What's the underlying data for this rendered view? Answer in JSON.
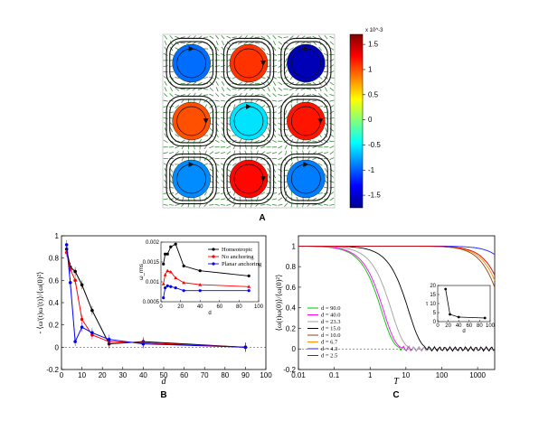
{
  "panel_letters": {
    "a": "A",
    "b": "B",
    "c": "C"
  },
  "panel_a": {
    "colorbar": {
      "multiplier": "x 10^-3",
      "ticks": [
        "1.5",
        "1",
        "0.5",
        "0",
        "-0.5",
        "-1",
        "-1.5"
      ],
      "tick_values": [
        1.5,
        1,
        0.5,
        0,
        -0.5,
        -1,
        -1.5
      ],
      "vmin": -1.75,
      "vmax": 1.7
    },
    "vortices": [
      {
        "row": 0,
        "col": 0,
        "value": -0.95
      },
      {
        "row": 0,
        "col": 1,
        "value": 1.1
      },
      {
        "row": 0,
        "col": 2,
        "value": -1.6
      },
      {
        "row": 1,
        "col": 0,
        "value": 1.0
      },
      {
        "row": 1,
        "col": 1,
        "value": -0.55
      },
      {
        "row": 1,
        "col": 2,
        "value": 1.2
      },
      {
        "row": 2,
        "col": 0,
        "value": -0.85
      },
      {
        "row": 2,
        "col": 1,
        "value": 1.25
      },
      {
        "row": 2,
        "col": 2,
        "value": -0.9
      }
    ],
    "colors": {
      "field": "#3a8a3a",
      "streamline": "#111111"
    }
  },
  "chart_data": [
    {
      "type": "line",
      "panel": "B",
      "xlabel": "d",
      "ylabel": "- ⟨ω'(t)ω'(t)⟩/⟨ω(0)²⟩",
      "xlim": [
        0,
        100
      ],
      "ylim": [
        -0.2,
        1.0
      ],
      "xticks": [
        0,
        10,
        20,
        30,
        40,
        50,
        60,
        70,
        80,
        90,
        100
      ],
      "yticks": [
        -0.2,
        0,
        0.2,
        0.4,
        0.6,
        0.8,
        1
      ],
      "series": [
        {
          "color": "#000000",
          "x": [
            2.5,
            4.3,
            6.7,
            10.0,
            15.0,
            23.3,
            40.0,
            90.0
          ],
          "y": [
            0.88,
            0.72,
            0.68,
            0.56,
            0.33,
            0.03,
            0.05,
            0.0
          ]
        },
        {
          "color": "#ff0000",
          "x": [
            2.5,
            4.3,
            6.7,
            10.0,
            15.0,
            23.3,
            40.0,
            90.0
          ],
          "y": [
            0.85,
            0.7,
            0.6,
            0.25,
            0.11,
            0.05,
            0.04,
            0.0
          ]
        },
        {
          "color": "#0000ff",
          "x": [
            2.5,
            4.3,
            6.7,
            10.0,
            15.0,
            23.3,
            40.0,
            90.0
          ],
          "y": [
            0.92,
            0.58,
            0.05,
            0.18,
            0.13,
            0.07,
            0.03,
            0.0
          ]
        }
      ],
      "inset": {
        "xlabel": "d",
        "ylabel": "ω_rms",
        "xlim": [
          0,
          100
        ],
        "ylim": [
          0.0005,
          0.002
        ],
        "xticks": [
          0,
          20,
          40,
          60,
          80,
          100
        ],
        "ytick_labels": [
          "0.0005",
          "0.001",
          "0.0015",
          "0.002"
        ],
        "ytick_values": [
          0.0005,
          0.001,
          0.0015,
          0.002
        ],
        "legend": [
          "Homeotropic",
          "No anchoring",
          "Planar anchoring"
        ],
        "series": [
          {
            "name": "Homeotropic",
            "color": "#000000",
            "marker": "circle",
            "x": [
              2.5,
              4.3,
              6.7,
              10.0,
              15.0,
              23.3,
              40.0,
              90.0
            ],
            "y": [
              0.00145,
              0.0017,
              0.0017,
              0.00188,
              0.00195,
              0.0014,
              0.00128,
              0.00115
            ]
          },
          {
            "name": "No anchoring",
            "color": "#ff0000",
            "marker": "triangle",
            "x": [
              2.5,
              4.3,
              6.7,
              10.0,
              15.0,
              23.3,
              40.0,
              90.0
            ],
            "y": [
              0.00095,
              0.00118,
              0.00128,
              0.00125,
              0.0011,
              0.00098,
              0.00093,
              0.00088
            ]
          },
          {
            "name": "Planar anchoring",
            "color": "#0000ff",
            "marker": "star",
            "x": [
              2.5,
              4.3,
              6.7,
              10.0,
              15.0,
              23.3,
              40.0,
              90.0
            ],
            "y": [
              0.0006,
              0.00085,
              0.0009,
              0.00088,
              0.00085,
              0.00078,
              0.00078,
              0.00078
            ]
          }
        ]
      }
    },
    {
      "type": "line",
      "panel": "C",
      "xlabel": "T",
      "ylabel": "⟨ω(t)ω(0)⟩/⟨ω(0)²⟩",
      "xscale": "log",
      "xlim": [
        0.01,
        3000
      ],
      "ylim": [
        -0.2,
        1.1
      ],
      "xtick_labels": [
        "0.01",
        "0.1",
        "1",
        "10",
        "100",
        "1000"
      ],
      "xtick_values": [
        0.01,
        0.1,
        1,
        10,
        100,
        1000
      ],
      "yticks": [
        -0.2,
        0,
        0.2,
        0.4,
        0.6,
        0.8,
        1
      ],
      "legend": [
        "d = 90.0",
        "d = 40.0",
        "d = 23.3",
        "d = 15.0",
        "d = 10.0",
        "d = 6.7",
        "d = 4.3",
        "d = 2.5"
      ],
      "series": [
        {
          "name": "d = 90.0",
          "color": "#00c000",
          "decay_time": 2.1,
          "tail": 0
        },
        {
          "name": "d = 40.0",
          "color": "#ff00ff",
          "decay_time": 2.4,
          "tail": 0
        },
        {
          "name": "d = 23.3",
          "color": "#a0a0a0",
          "decay_time": 4.0,
          "tail": 0
        },
        {
          "name": "d = 15.0",
          "color": "#000000",
          "decay_time": 12,
          "tail": 0
        },
        {
          "name": "d = 10.0",
          "color": "#8b4513",
          "decay_time": 5000,
          "tail": 1
        },
        {
          "name": "d = 6.7",
          "color": "#ff8c00",
          "decay_time": 6000,
          "tail": 1
        },
        {
          "name": "d = 4.3",
          "color": "#2020ff",
          "decay_time": 20000,
          "tail": 1
        },
        {
          "name": "d = 2.5",
          "color": "#d00000",
          "decay_time": 7000,
          "tail": 1
        }
      ],
      "inset": {
        "xlabel": "d",
        "ylabel": "τ",
        "xlim": [
          0,
          100
        ],
        "ylim": [
          0,
          20
        ],
        "xticks": [
          0,
          20,
          40,
          60,
          80,
          100
        ],
        "yticks": [
          0,
          5,
          10,
          15,
          20
        ],
        "x": [
          15,
          23.3,
          40,
          90
        ],
        "y": [
          18,
          4,
          2.5,
          2
        ]
      }
    }
  ]
}
